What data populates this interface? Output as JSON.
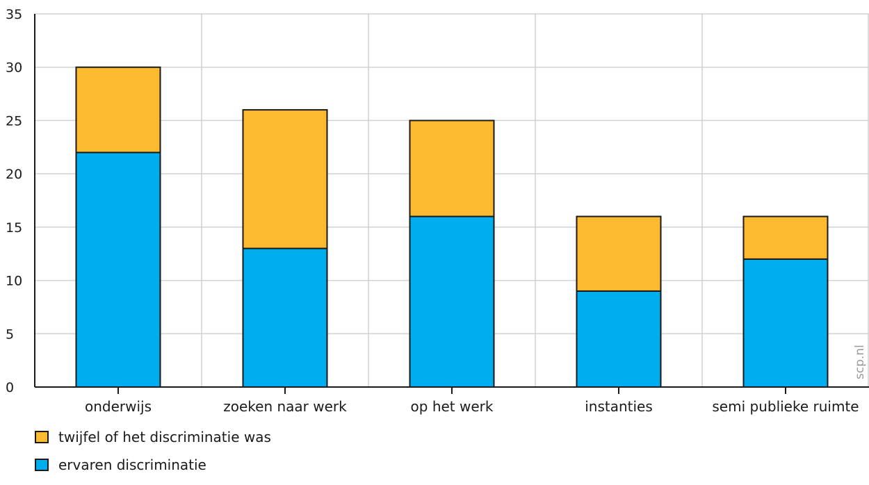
{
  "chart_data": {
    "type": "bar",
    "stacked": true,
    "categories": [
      "onderwijs",
      "zoeken naar werk",
      "op het werk",
      "instanties",
      "semi publieke ruimte"
    ],
    "series": [
      {
        "name": "ervaren discriminatie",
        "values": [
          22,
          13,
          16,
          9,
          12
        ],
        "color": "#00adee"
      },
      {
        "name": "twijfel of het discriminatie was",
        "values": [
          8,
          13,
          9,
          7,
          4
        ],
        "color": "#fbba30"
      }
    ],
    "totals": [
      30,
      26,
      25,
      16,
      16
    ],
    "title": "",
    "xlabel": "",
    "ylabel": "",
    "ylim": [
      0,
      35
    ],
    "yticks": [
      0,
      5,
      10,
      15,
      20,
      25,
      30,
      35
    ],
    "grid": true,
    "legend_position": "bottom-left"
  },
  "legend": {
    "items": [
      {
        "label": "twijfel of het discriminatie was",
        "color": "#fbba30"
      },
      {
        "label": "ervaren discriminatie",
        "color": "#00adee"
      }
    ]
  },
  "watermark": "scp.nl"
}
